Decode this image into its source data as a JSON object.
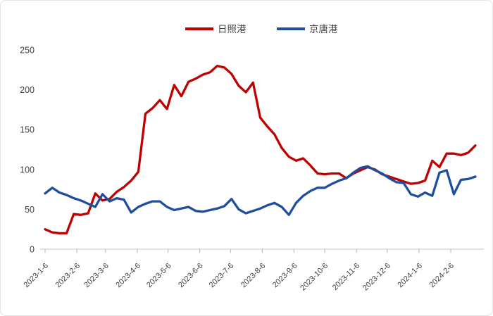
{
  "chart_data": {
    "type": "line",
    "title": "",
    "xlabel": "",
    "ylabel": "",
    "legend_position": "top",
    "grid": false,
    "ylim": [
      0,
      250
    ],
    "yticks": [
      0,
      50,
      100,
      150,
      200,
      250
    ],
    "xtick_labels": [
      "2023-1-6",
      "2023-2-6",
      "2023-3-6",
      "2023-4-6",
      "2023-5-6",
      "2023-6-6",
      "2023-7-6",
      "2023-8-6",
      "2023-9-6",
      "2023-10-6",
      "2023-11-6",
      "2023-12-6",
      "2024-1-6",
      "2024-2-6"
    ],
    "x": [
      "2023-1-6",
      "2023-1-13",
      "2023-1-20",
      "2023-1-27",
      "2023-2-3",
      "2023-2-10",
      "2023-2-17",
      "2023-2-24",
      "2023-3-3",
      "2023-3-10",
      "2023-3-17",
      "2023-3-24",
      "2023-3-31",
      "2023-4-7",
      "2023-4-14",
      "2023-4-21",
      "2023-4-28",
      "2023-5-5",
      "2023-5-12",
      "2023-5-19",
      "2023-5-26",
      "2023-6-2",
      "2023-6-9",
      "2023-6-16",
      "2023-6-23",
      "2023-6-30",
      "2023-7-7",
      "2023-7-14",
      "2023-7-21",
      "2023-7-28",
      "2023-8-4",
      "2023-8-11",
      "2023-8-18",
      "2023-8-25",
      "2023-9-1",
      "2023-9-8",
      "2023-9-15",
      "2023-9-22",
      "2023-9-29",
      "2023-10-6",
      "2023-10-13",
      "2023-10-20",
      "2023-10-27",
      "2023-11-3",
      "2023-11-10",
      "2023-11-17",
      "2023-11-24",
      "2023-12-1",
      "2023-12-8",
      "2023-12-15",
      "2023-12-22",
      "2023-12-29",
      "2024-1-5",
      "2024-1-12",
      "2024-1-19",
      "2024-1-26",
      "2024-2-2",
      "2024-2-9",
      "2024-2-16",
      "2024-2-23",
      "2024-3-1"
    ],
    "series": [
      {
        "name": "日照港",
        "color": "#C00000",
        "values": [
          25,
          21,
          20,
          20,
          44,
          43,
          45,
          70,
          61,
          63,
          72,
          78,
          86,
          97,
          170,
          177,
          187,
          176,
          206,
          192,
          210,
          214,
          219,
          222,
          230,
          228,
          220,
          205,
          197,
          209,
          165,
          154,
          144,
          127,
          116,
          111,
          114,
          105,
          95,
          94,
          95,
          95,
          89,
          95,
          99,
          103,
          100,
          94,
          91,
          88,
          85,
          82,
          83,
          86,
          111,
          103,
          120,
          120,
          118,
          121,
          130
        ]
      },
      {
        "name": "京唐港",
        "color": "#1F4E9E",
        "values": [
          70,
          77,
          71,
          68,
          64,
          61,
          57,
          53,
          69,
          60,
          64,
          62,
          46,
          53,
          57,
          60,
          60,
          53,
          49,
          51,
          53,
          48,
          47,
          49,
          51,
          54,
          63,
          50,
          45,
          48,
          51,
          55,
          58,
          53,
          43,
          58,
          67,
          73,
          77,
          77,
          82,
          86,
          89,
          96,
          102,
          104,
          99,
          95,
          89,
          84,
          83,
          69,
          66,
          71,
          67,
          96,
          99,
          69,
          87,
          88,
          91
        ]
      }
    ],
    "axis_color": "#d9d9d9",
    "tick_color": "#bfbfbf",
    "label_color": "#404040"
  }
}
